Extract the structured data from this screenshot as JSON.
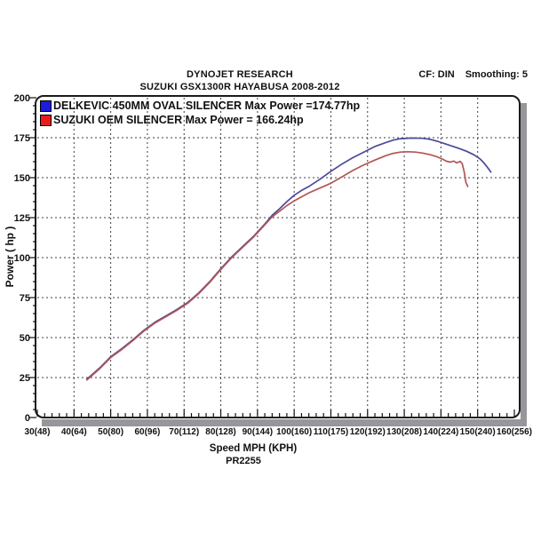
{
  "header": {
    "title_line1": "DYNOJET RESEARCH",
    "title_line2": "SUZUKI GSX1300R HAYABUSA 2008-2012",
    "cf_label": "CF: DIN",
    "smoothing_label": "Smoothing: 5"
  },
  "chart_data": {
    "type": "line",
    "title": "DYNOJET RESEARCH — SUZUKI GSX1300R HAYABUSA 2008-2012",
    "xlabel": "Speed MPH (KPH)",
    "ylabel": "Power ( hp )",
    "footnote": "PR2255",
    "xlim": [
      30,
      160
    ],
    "ylim": [
      0,
      200
    ],
    "grid": "dashed",
    "legend_position": "top-left-inside",
    "colors": {
      "grid": "#3f3f3f",
      "frame": "#1b1b1b",
      "frame_shadow": "#97979b"
    },
    "x_ticks": [
      {
        "mph": 30,
        "label": "30(48)"
      },
      {
        "mph": 40,
        "label": "40(64)"
      },
      {
        "mph": 50,
        "label": "50(80)"
      },
      {
        "mph": 60,
        "label": "60(96)"
      },
      {
        "mph": 70,
        "label": "70(112)"
      },
      {
        "mph": 80,
        "label": "80(128)"
      },
      {
        "mph": 90,
        "label": "90(144)"
      },
      {
        "mph": 100,
        "label": "100(160)"
      },
      {
        "mph": 110,
        "label": "110(175)"
      },
      {
        "mph": 120,
        "label": "120(192)"
      },
      {
        "mph": 130,
        "label": "130(208)"
      },
      {
        "mph": 140,
        "label": "140(224)"
      },
      {
        "mph": 150,
        "label": "150(240)"
      },
      {
        "mph": 160,
        "label": "160(256)"
      }
    ],
    "y_ticks": [
      0,
      25,
      50,
      75,
      100,
      125,
      150,
      175,
      200
    ],
    "series": [
      {
        "name": "DELKEVIC 450MM OVAL SILENCER",
        "legend": "DELKEVIC 450MM OVAL SILENCER Max Power =174.77hp",
        "max_power_hp": 174.77,
        "color": "#4a4a99",
        "swatch_color": "#1c1cdf",
        "points": [
          [
            43.5,
            24
          ],
          [
            45,
            27
          ],
          [
            47,
            31
          ],
          [
            50,
            38
          ],
          [
            53,
            43
          ],
          [
            56,
            48.5
          ],
          [
            59,
            54.5
          ],
          [
            62,
            59.5
          ],
          [
            65,
            63.5
          ],
          [
            68,
            67.5
          ],
          [
            71,
            72
          ],
          [
            74,
            78
          ],
          [
            77,
            85
          ],
          [
            80,
            93
          ],
          [
            83,
            100.5
          ],
          [
            86,
            107
          ],
          [
            89,
            113.5
          ],
          [
            92,
            121
          ],
          [
            94,
            126.5
          ],
          [
            96,
            130.5
          ],
          [
            98,
            135
          ],
          [
            100,
            139
          ],
          [
            102,
            142
          ],
          [
            104,
            144.5
          ],
          [
            107,
            149
          ],
          [
            110,
            154
          ],
          [
            113,
            158.5
          ],
          [
            116,
            162.5
          ],
          [
            119,
            166
          ],
          [
            122,
            169.5
          ],
          [
            125,
            172
          ],
          [
            127,
            173.5
          ],
          [
            129,
            174.4
          ],
          [
            132,
            174.8
          ],
          [
            135,
            174.6
          ],
          [
            137,
            174
          ],
          [
            139,
            172.8
          ],
          [
            141,
            171.3
          ],
          [
            143,
            169.8
          ],
          [
            145,
            168.2
          ],
          [
            147,
            166.5
          ],
          [
            149,
            164.3
          ],
          [
            150.5,
            162
          ],
          [
            151.5,
            159.8
          ],
          [
            152.5,
            157
          ],
          [
            153.6,
            153.5
          ]
        ]
      },
      {
        "name": "SUZUKI OEM SILENCER",
        "legend": "SUZUKI OEM SILENCER Max Power = 166.24hp",
        "max_power_hp": 166.24,
        "color": "#b45555",
        "swatch_color": "#e81c1c",
        "points": [
          [
            43.5,
            23.5
          ],
          [
            45,
            26.5
          ],
          [
            47,
            30.5
          ],
          [
            50,
            37.5
          ],
          [
            53,
            42.5
          ],
          [
            56,
            48
          ],
          [
            59,
            54
          ],
          [
            62,
            59
          ],
          [
            65,
            63
          ],
          [
            68,
            67
          ],
          [
            71,
            71.5
          ],
          [
            74,
            77.5
          ],
          [
            77,
            84.5
          ],
          [
            80,
            92.5
          ],
          [
            83,
            100
          ],
          [
            86,
            106.5
          ],
          [
            89,
            113
          ],
          [
            92,
            120.5
          ],
          [
            94,
            125.5
          ],
          [
            96,
            129
          ],
          [
            98,
            132.5
          ],
          [
            100,
            135.5
          ],
          [
            102,
            138
          ],
          [
            104,
            140.5
          ],
          [
            107,
            143.5
          ],
          [
            110,
            146.5
          ],
          [
            113,
            150.5
          ],
          [
            116,
            154.5
          ],
          [
            119,
            158
          ],
          [
            122,
            161
          ],
          [
            125,
            163.8
          ],
          [
            127,
            165.2
          ],
          [
            129,
            166
          ],
          [
            131,
            166.2
          ],
          [
            133,
            166
          ],
          [
            135,
            165.4
          ],
          [
            137,
            164.4
          ],
          [
            139,
            163
          ],
          [
            140.5,
            161.5
          ],
          [
            141.5,
            160.3
          ],
          [
            142.5,
            159.7
          ],
          [
            143.5,
            160.4
          ],
          [
            144.3,
            159.2
          ],
          [
            145.2,
            160.2
          ],
          [
            145.8,
            158.8
          ],
          [
            146.3,
            154
          ],
          [
            146.8,
            147
          ],
          [
            147.3,
            144.5
          ]
        ]
      }
    ]
  }
}
